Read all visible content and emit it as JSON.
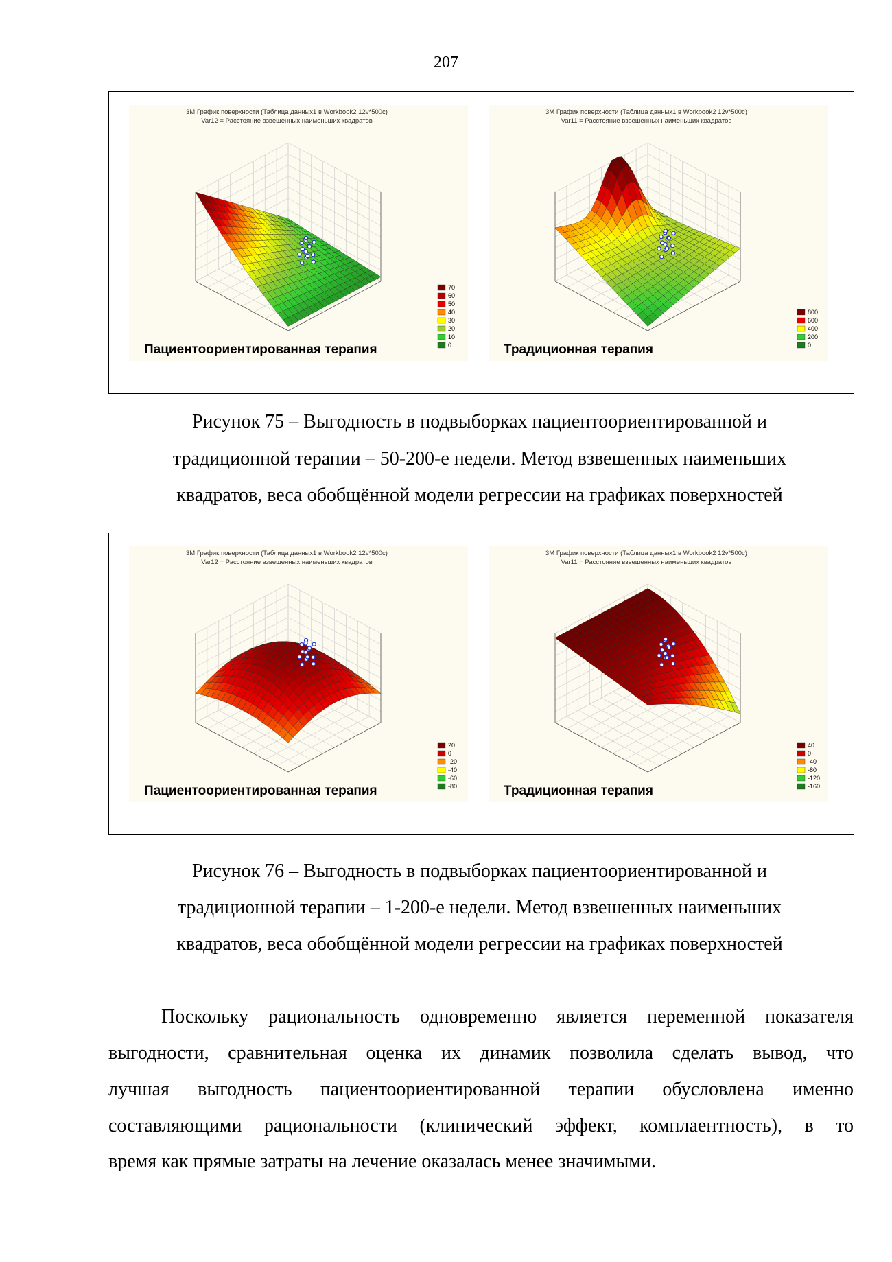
{
  "page_number": "207",
  "figures": [
    {
      "panels": [
        {
          "title_lines": [
            "3М График поверхности (Таблица данных1 в Workbook2 12v*500c)",
            "Var12 = Расстояние взвешенных наименьших квадратов"
          ],
          "label": "Пациентоориентированная терапия",
          "legend": [
            70,
            60,
            50,
            40,
            30,
            20,
            10,
            0
          ],
          "legend_colors": [
            "#7a0000",
            "#b30000",
            "#e60000",
            "#ff8c00",
            "#ffff00",
            "#9acd32",
            "#33cc33",
            "#1e7a1e"
          ]
        },
        {
          "title_lines": [
            "3М График поверхности (Таблица данных1 в Workbook2 12v*500c)",
            "Var11 = Расстояние взвешенных наименьших квадратов"
          ],
          "label": "Традиционная терапия",
          "legend": [
            800,
            600,
            400,
            200,
            0
          ],
          "legend_colors": [
            "#7a0000",
            "#e60000",
            "#ffff00",
            "#33cc33",
            "#1e7a1e"
          ]
        }
      ],
      "caption_lines": [
        "Рисунок 75 – Выгодность в подвыборках пациентоориентированной и",
        "традиционной терапии – 50-200-е недели. Метод взвешенных наименьших",
        "квадратов, веса обобщённой модели регрессии на графиках поверхностей"
      ]
    },
    {
      "panels": [
        {
          "title_lines": [
            "3М График поверхности (Таблица данных1 в Workbook2 12v*500c)",
            "Var12 = Расстояние взвешенных наименьших квадратов"
          ],
          "label": "Пациентоориентированная терапия",
          "legend": [
            20,
            0,
            -20,
            -40,
            -60,
            -80
          ],
          "legend_colors": [
            "#7a0000",
            "#cc0000",
            "#ff8c00",
            "#ffff00",
            "#33cc33",
            "#1e7a1e"
          ]
        },
        {
          "title_lines": [
            "3М График поверхности (Таблица данных1 в Workbook2 12v*500c)",
            "Var11 = Расстояние взвешенных наименьших квадратов"
          ],
          "label": "Традиционная терапия",
          "legend": [
            40,
            0,
            -40,
            -80,
            -120,
            -160
          ],
          "legend_colors": [
            "#7a0000",
            "#cc0000",
            "#ff8c00",
            "#ffff00",
            "#33cc33",
            "#1e7a1e"
          ]
        }
      ],
      "caption_lines": [
        "Рисунок 76 – Выгодность в подвыборках пациентоориентированной и",
        "традиционной терапии – 1-200-е недели. Метод взвешенных наименьших",
        "квадратов, веса обобщённой модели регрессии на графиках поверхностей"
      ]
    }
  ],
  "paragraph_lines": [
    "Поскольку рациональность одновременно является переменной показателя",
    "выгодности, сравнительная оценка их динамик позволила сделать вывод, что",
    "лучшая выгодность пациентоориентированной терапии обусловлена именно",
    "составляющими рациональности (клинический эффект, комплаентность), в то",
    "время как прямые затраты на лечение оказалась менее значимыми."
  ]
}
